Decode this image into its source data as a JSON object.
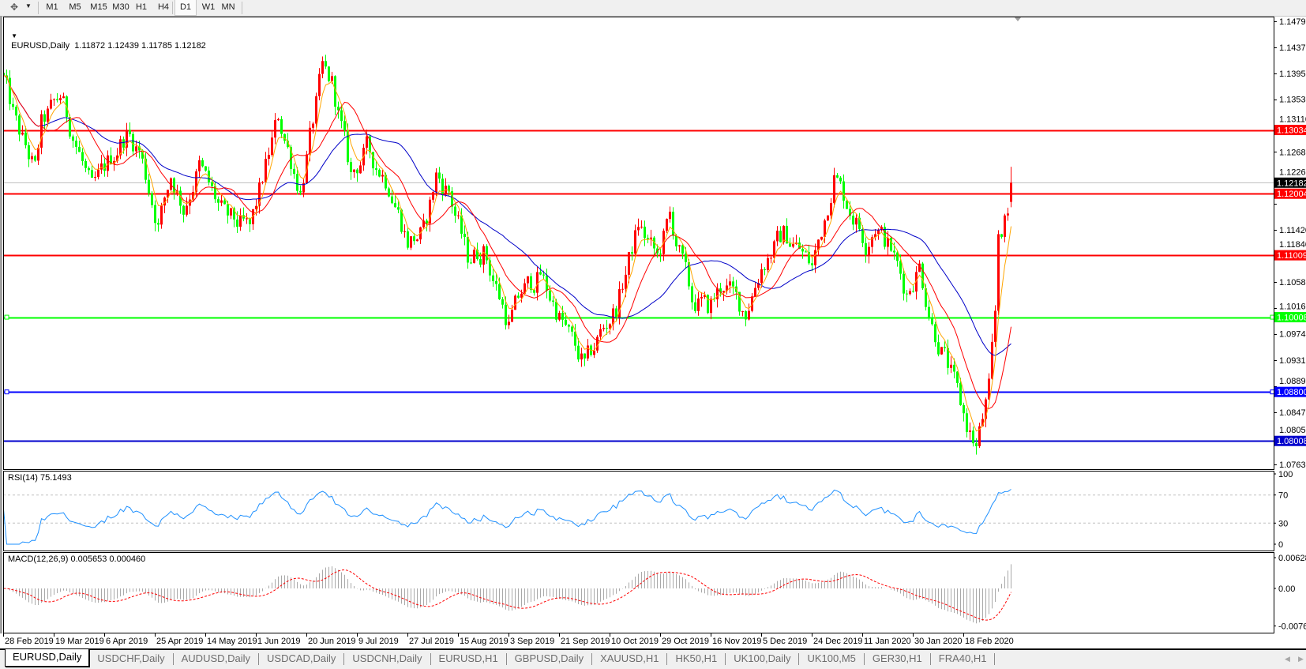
{
  "toolbar": {
    "icon": "crosshair-period-icon",
    "periods": [
      "M1",
      "M5",
      "M15",
      "M30",
      "H1",
      "H4",
      "D1",
      "W1",
      "MN"
    ],
    "active_period": "D1"
  },
  "main": {
    "symbol_label": "EURUSD,Daily",
    "ohlc_label": "1.11872 1.12439 1.11785 1.12182",
    "price_ticks": [
      "1.14790",
      "1.14370",
      "1.13950",
      "1.13530",
      "1.13110",
      "1.12680",
      "1.12260",
      "1.11840",
      "1.11420",
      "1.10580",
      "1.10160",
      "1.09740",
      "1.09310",
      "1.08890",
      "1.08470",
      "1.08050",
      "1.07630"
    ],
    "current_price": "1.12182",
    "hlines": [
      {
        "price": "1.13034",
        "color": "#ff0000"
      },
      {
        "price": "1.12004",
        "color": "#ff0000"
      },
      {
        "price": "1.11009",
        "color": "#ff0000"
      },
      {
        "price": "1.10008",
        "color": "#00ff00",
        "selected": true
      },
      {
        "price": "1.08800",
        "color": "#0000ff",
        "selected": true
      },
      {
        "price": "1.08008",
        "color": "#0000cd"
      }
    ],
    "date_ticks": [
      "28 Feb 2019",
      "19 Mar 2019",
      "6 Apr 2019",
      "25 Apr 2019",
      "14 May 2019",
      "1 Jun 2019",
      "20 Jun 2019",
      "9 Jul 2019",
      "27 Jul 2019",
      "15 Aug 2019",
      "3 Sep 2019",
      "21 Sep 2019",
      "10 Oct 2019",
      "29 Oct 2019",
      "16 Nov 2019",
      "5 Dec 2019",
      "24 Dec 2019",
      "11 Jan 2020",
      "30 Jan 2020",
      "18 Feb 2020"
    ]
  },
  "rsi": {
    "label": "RSI(14) 75.1493",
    "ticks": [
      "100",
      "70",
      "30",
      "0"
    ],
    "color": "#1e90ff"
  },
  "macd": {
    "label": "MACD(12,26,9) 0.005653 0.000460",
    "ticks": [
      "0.006287",
      "0.00",
      "-0.007658"
    ],
    "hist_color": "#a9a9a9",
    "signal_color": "#ff0000"
  },
  "chart_data": {
    "type": "candlestick",
    "symbol": "EURUSD",
    "timeframe": "Daily",
    "bull_color": "#ff0000",
    "bear_color": "#00ff00",
    "ma_colors": [
      "#ffa500",
      "#ff0000",
      "#0000c8"
    ],
    "last_bar": {
      "open": 1.11872,
      "high": 1.12439,
      "low": 1.11785,
      "close": 1.12182
    },
    "ylim": [
      1.0763,
      1.1479
    ],
    "closes_by_bar": [
      [
        0,
        1.1386
      ],
      [
        4,
        1.1312
      ],
      [
        10,
        1.1238
      ],
      [
        12,
        1.1312
      ],
      [
        18,
        1.1359
      ],
      [
        21,
        1.1312
      ],
      [
        28,
        1.1204
      ],
      [
        33,
        1.1251
      ],
      [
        39,
        1.1298
      ],
      [
        43,
        1.1271
      ],
      [
        49,
        1.115
      ],
      [
        53,
        1.1231
      ],
      [
        57,
        1.1177
      ],
      [
        62,
        1.1244
      ],
      [
        70,
        1.1163
      ],
      [
        78,
        1.1143
      ],
      [
        83,
        1.1244
      ],
      [
        87,
        1.1325
      ],
      [
        94,
        1.1204
      ],
      [
        101,
        1.1399
      ],
      [
        104,
        1.1379
      ],
      [
        110,
        1.1231
      ],
      [
        115,
        1.1271
      ],
      [
        122,
        1.1217
      ],
      [
        128,
        1.1123
      ],
      [
        133,
        1.1136
      ],
      [
        137,
        1.1231
      ],
      [
        141,
        1.1204
      ],
      [
        147,
        1.1096
      ],
      [
        152,
        1.111
      ],
      [
        160,
        1.0989
      ],
      [
        164,
        1.1042
      ],
      [
        170,
        1.1069
      ],
      [
        176,
        1.1002
      ],
      [
        184,
        1.0921
      ],
      [
        189,
        1.0975
      ],
      [
        194,
        1.1015
      ],
      [
        201,
        1.115
      ],
      [
        207,
        1.1096
      ],
      [
        211,
        1.1163
      ],
      [
        218,
        1.1029
      ],
      [
        223,
        1.1015
      ],
      [
        228,
        1.1056
      ],
      [
        235,
        1.1009
      ],
      [
        240,
        1.1083
      ],
      [
        247,
        1.1136
      ],
      [
        252,
        1.111
      ],
      [
        256,
        1.1083
      ],
      [
        260,
        1.1163
      ],
      [
        263,
        1.1231
      ],
      [
        268,
        1.1177
      ],
      [
        273,
        1.1123
      ],
      [
        276,
        1.115
      ],
      [
        281,
        1.111
      ],
      [
        286,
        1.1042
      ],
      [
        290,
        1.1083
      ],
      [
        294,
        1.0989
      ],
      [
        300,
        1.0908
      ],
      [
        305,
        1.0827
      ],
      [
        308,
        1.079
      ],
      [
        312,
        1.0881
      ],
      [
        314,
        1.1002
      ],
      [
        315,
        1.1136
      ],
      [
        318,
        1.1163
      ],
      [
        319,
        1.12182
      ]
    ]
  },
  "tabs": [
    "EURUSD,Daily",
    "USDCHF,Daily",
    "AUDUSD,Daily",
    "USDCAD,Daily",
    "USDCNH,Daily",
    "EURUSD,H1",
    "GBPUSD,Daily",
    "XAUUSD,H1",
    "HK50,H1",
    "UK100,Daily",
    "UK100,M5",
    "GER30,H1",
    "FRA40,H1"
  ],
  "active_tab": "EURUSD,Daily"
}
